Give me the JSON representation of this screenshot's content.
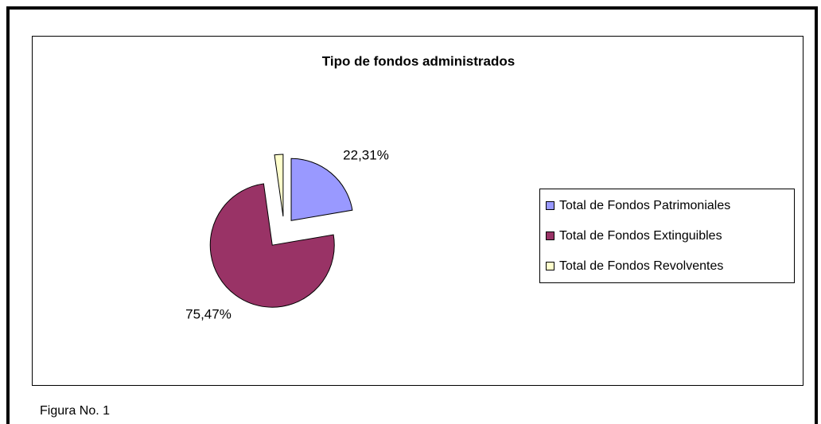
{
  "chart_data": {
    "type": "pie",
    "title": "Tipo de fondos administrados",
    "categories": [
      "Total de Fondos Patrimoniales",
      "Total de Fondos Extinguibles",
      "Total de Fondos Revolventes"
    ],
    "values": [
      22.31,
      75.47,
      2.22
    ],
    "value_labels": [
      "22,31%",
      "75,47%",
      null
    ],
    "colors": [
      "#9999ff",
      "#993366",
      "#ffffcc"
    ],
    "legend": "right"
  },
  "caption": "Figura No. 1"
}
